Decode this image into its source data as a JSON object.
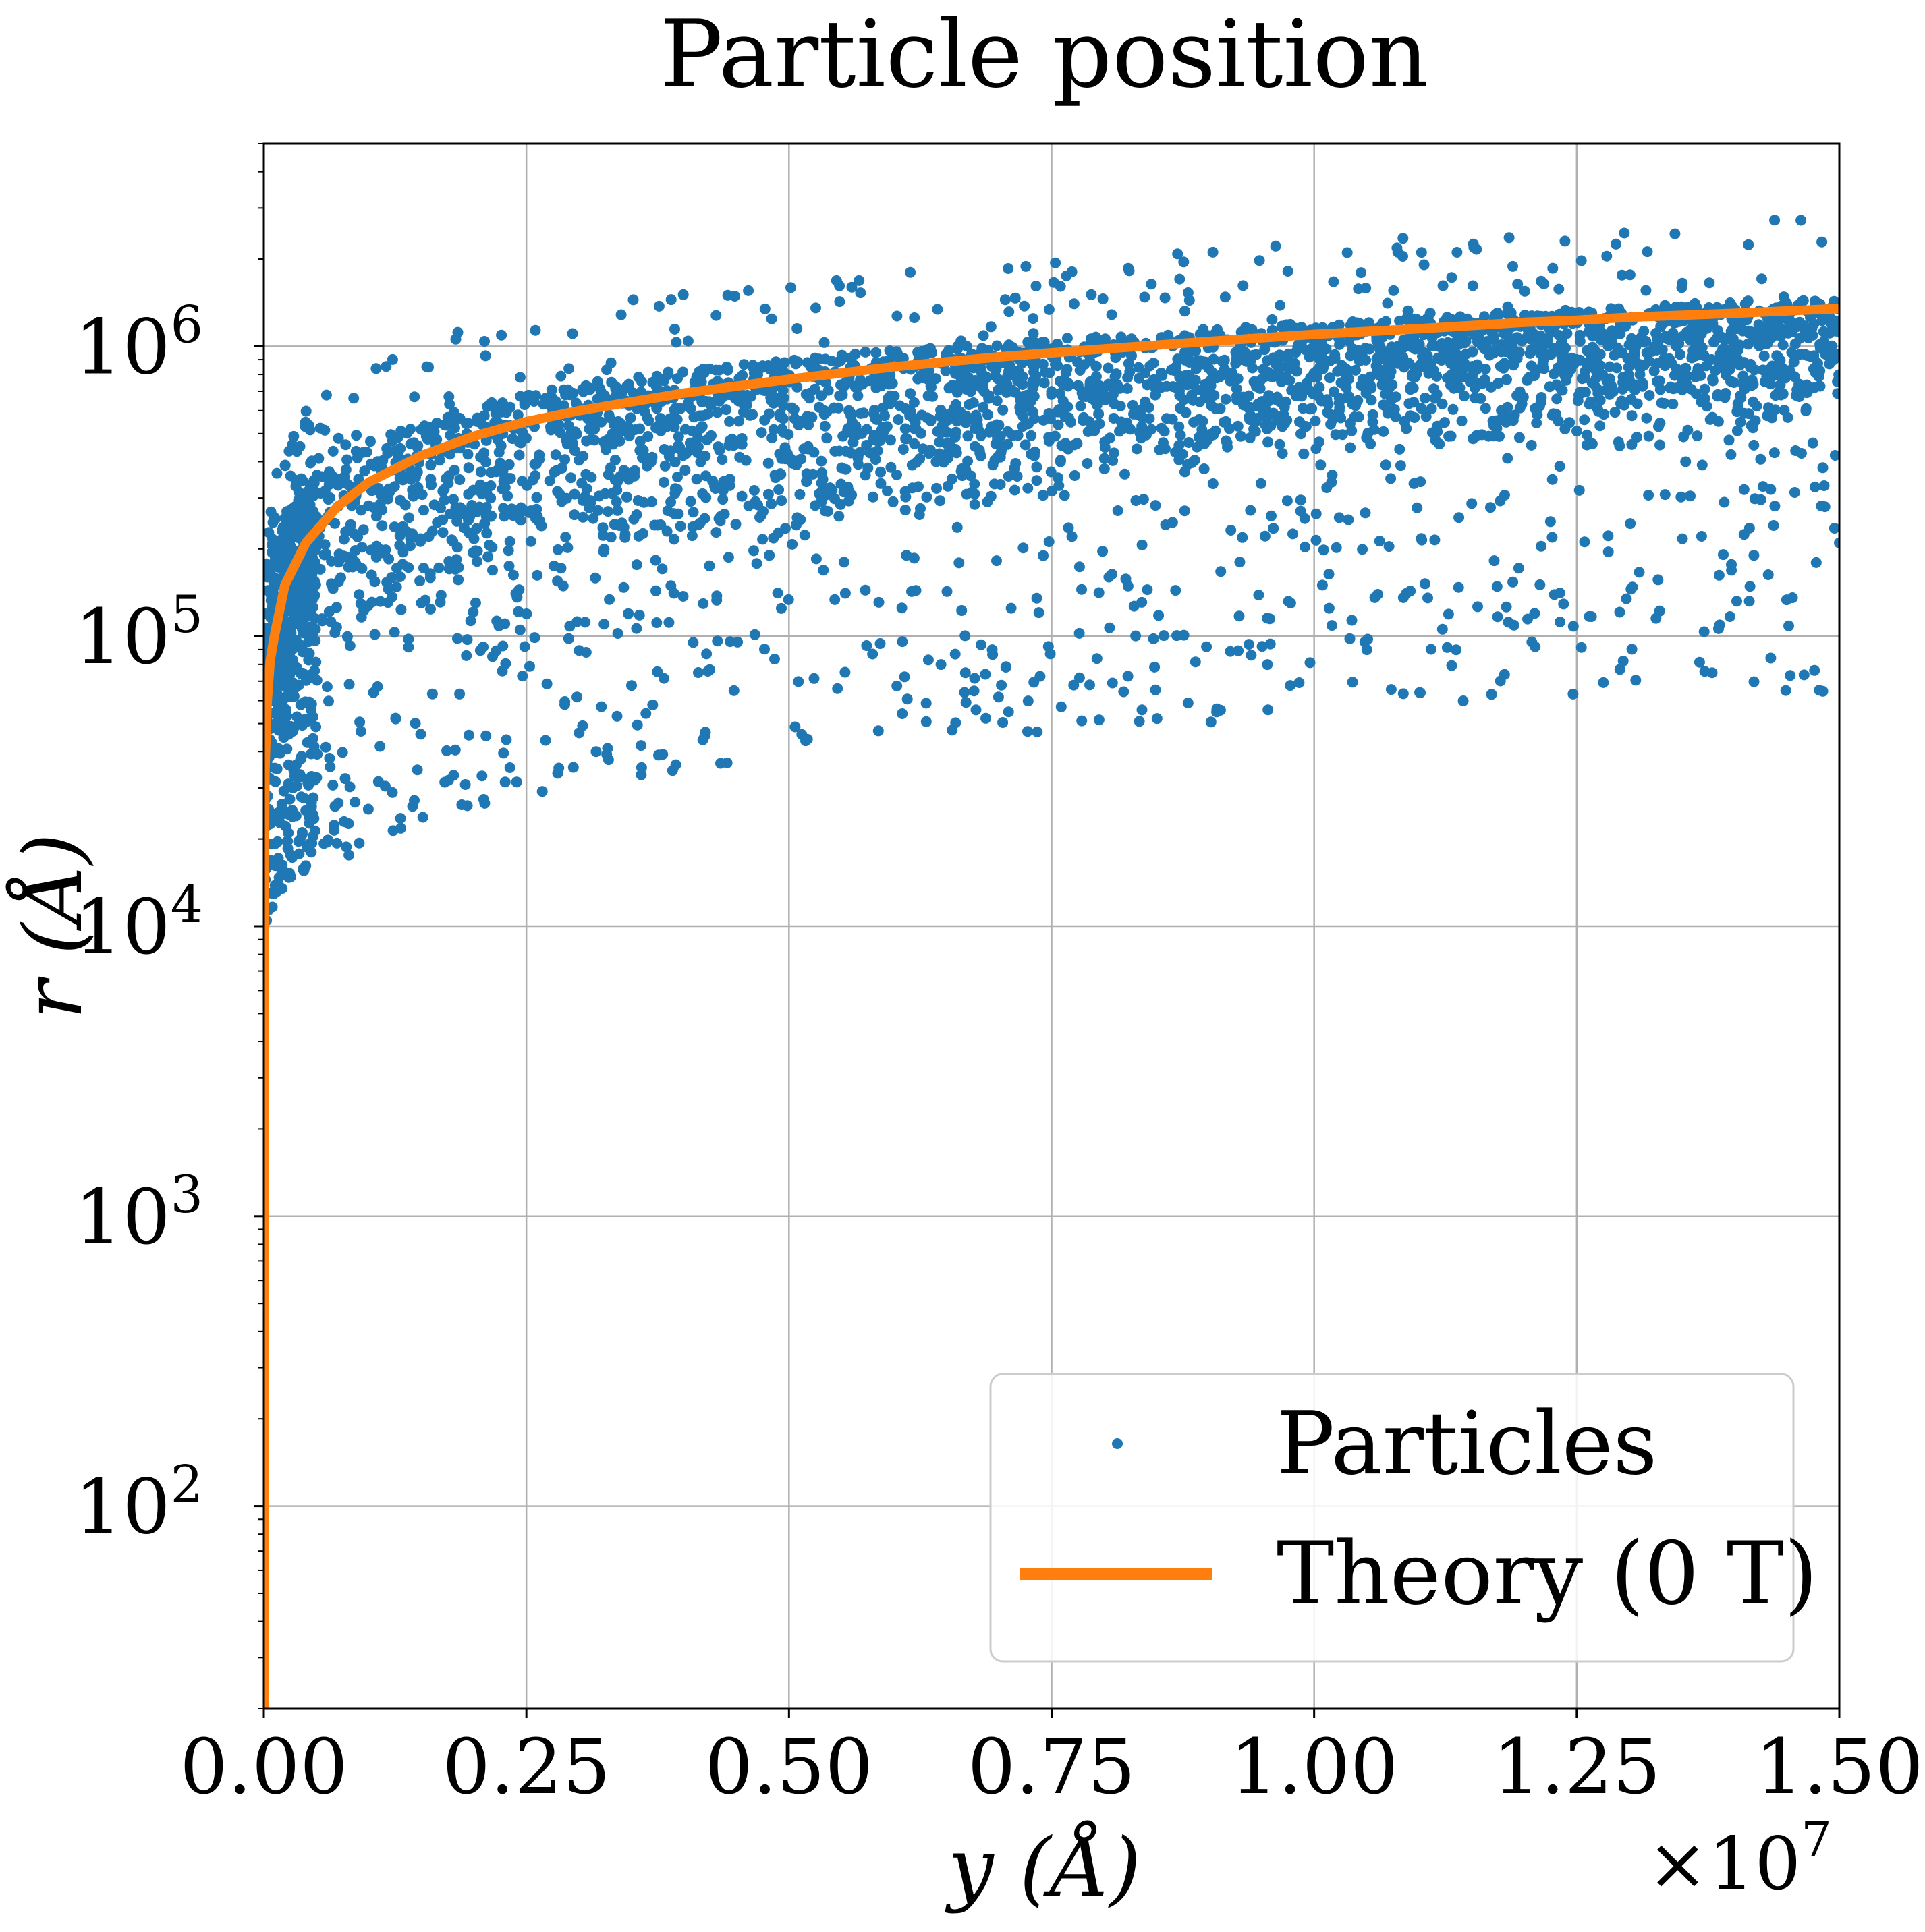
{
  "chart_data": {
    "type": "scatter",
    "title": "Particle position",
    "xlabel": "y (Å)",
    "ylabel": "r (Å)",
    "x_offset_text": "×10",
    "x_offset_exponent": "7",
    "x_scale_factor": 10000000,
    "xlim": [
      0,
      1.5
    ],
    "ylim": [
      20,
      5000000
    ],
    "yscale": "log",
    "grid": true,
    "legend_position": "lower-right",
    "x_ticks": [
      {
        "value": 0.0,
        "label": "0.00"
      },
      {
        "value": 0.25,
        "label": "0.25"
      },
      {
        "value": 0.5,
        "label": "0.50"
      },
      {
        "value": 0.75,
        "label": "0.75"
      },
      {
        "value": 1.0,
        "label": "1.00"
      },
      {
        "value": 1.25,
        "label": "1.25"
      },
      {
        "value": 1.5,
        "label": "1.50"
      }
    ],
    "y_ticks": [
      {
        "value": 100,
        "base": "10",
        "exp": "2"
      },
      {
        "value": 1000,
        "base": "10",
        "exp": "3"
      },
      {
        "value": 10000,
        "base": "10",
        "exp": "4"
      },
      {
        "value": 100000,
        "base": "10",
        "exp": "5"
      },
      {
        "value": 1000000,
        "base": "10",
        "exp": "6"
      }
    ],
    "series": [
      {
        "name": "Particles",
        "kind": "scatter",
        "color": "#1f77b4",
        "note": "approx. envelope of dense particle cloud (r in Å vs y in units of 1e7 Å)",
        "x": [
          0.002,
          0.01,
          0.02,
          0.05,
          0.1,
          0.15,
          0.2,
          0.25,
          0.3,
          0.4,
          0.5,
          0.6,
          0.75,
          0.9,
          1.0,
          1.1,
          1.25,
          1.4,
          1.5
        ],
        "upper": [
          100000,
          180000,
          260000,
          360000,
          470000,
          550000,
          620000,
          680000,
          740000,
          830000,
          900000,
          970000,
          1060000,
          1150000,
          1210000,
          1260000,
          1340000,
          1420000,
          1470000
        ],
        "lower": [
          20000,
          25000,
          30000,
          50000,
          70000,
          90000,
          110000,
          130000,
          150000,
          180000,
          210000,
          240000,
          290000,
          340000,
          380000,
          400000,
          430000,
          460000,
          480000
        ],
        "outlier_band_lower": [
          10000,
          12000,
          14000,
          16000,
          18000,
          20000,
          25000,
          28000,
          30000,
          35000,
          38000,
          42000,
          45000,
          50000,
          55000,
          58000,
          60000,
          62000,
          65000
        ]
      },
      {
        "name": "Theory (0 T)",
        "kind": "line",
        "color": "#ff7f0e",
        "x": [
          0.0,
          0.0001,
          0.0005,
          0.001,
          0.003,
          0.006,
          0.01,
          0.02,
          0.04,
          0.07,
          0.1,
          0.15,
          0.2,
          0.25,
          0.3,
          0.4,
          0.5,
          0.6,
          0.7,
          0.75,
          0.8,
          0.9,
          1.0,
          1.1,
          1.2,
          1.25,
          1.3,
          1.4,
          1.5
        ],
        "y": [
          20,
          3400,
          17000,
          34000,
          58000,
          82000,
          100000,
          150000,
          210000,
          280000,
          340000,
          420000,
          490000,
          550000,
          600000,
          690000,
          770000,
          850000,
          920000,
          950000,
          980000,
          1040000,
          1100000,
          1150000,
          1210000,
          1230000,
          1260000,
          1300000,
          1350000
        ]
      }
    ]
  }
}
